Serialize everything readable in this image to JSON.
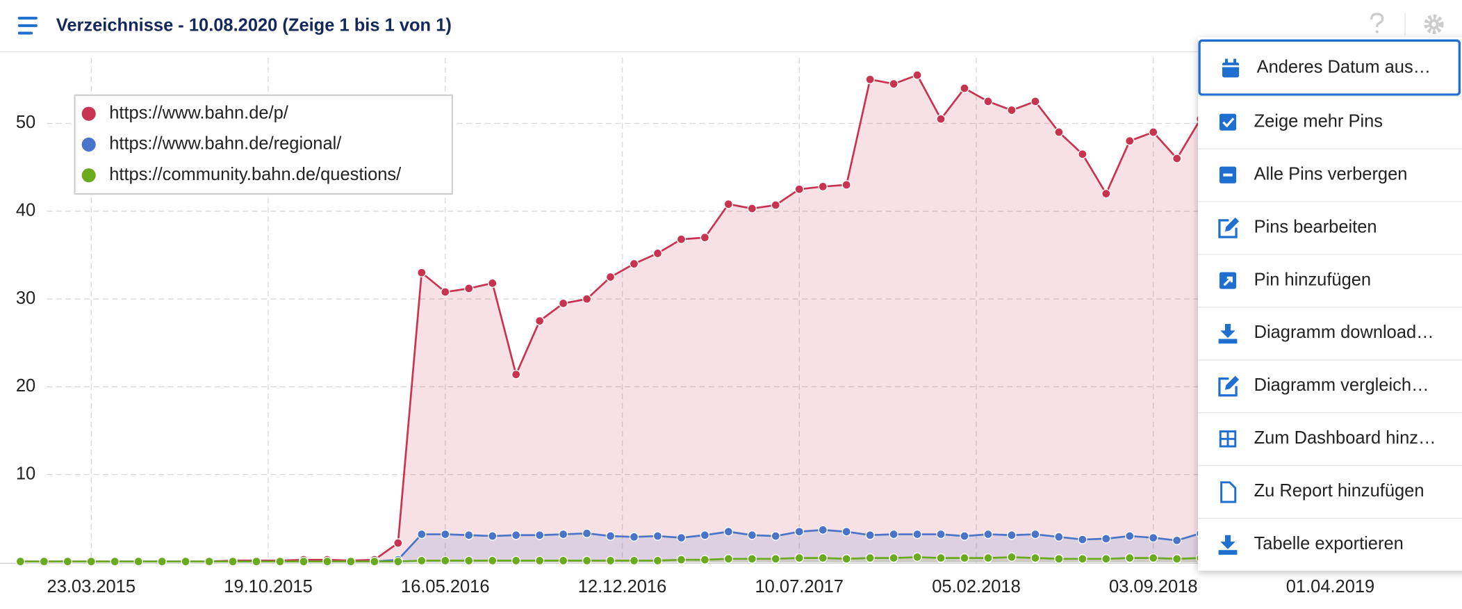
{
  "header": {
    "title": "Verzeichnisse - 10.08.2020 (Zeige 1 bis 1 von 1)"
  },
  "chart_data": {
    "type": "line",
    "x": [
      "29.12.2014",
      "26.01.2015",
      "23.02.2015",
      "23.03.2015",
      "20.04.2015",
      "18.05.2015",
      "15.06.2015",
      "13.07.2015",
      "10.08.2015",
      "07.09.2015",
      "05.10.2015",
      "02.11.2015",
      "30.11.2015",
      "28.12.2015",
      "25.01.2016",
      "22.02.2016",
      "21.03.2016",
      "18.04.2016",
      "16.05.2016",
      "13.06.2016",
      "11.07.2016",
      "08.08.2016",
      "05.09.2016",
      "03.10.2016",
      "31.10.2016",
      "28.11.2016",
      "26.12.2016",
      "23.01.2017",
      "20.02.2017",
      "20.03.2017",
      "17.04.2017",
      "15.05.2017",
      "12.06.2017",
      "10.07.2017",
      "07.08.2017",
      "04.09.2017",
      "02.10.2017",
      "30.10.2017",
      "27.11.2017",
      "25.12.2017",
      "22.01.2018",
      "19.02.2018",
      "19.03.2018",
      "16.04.2018",
      "14.05.2018",
      "11.06.2018",
      "09.07.2018",
      "06.08.2018",
      "03.09.2018",
      "01.10.2018",
      "29.10.2018"
    ],
    "series": [
      {
        "name": "https://www.bahn.de/p/",
        "color": "#c8334f",
        "values": [
          0.1,
          0.1,
          0.1,
          0.1,
          0.1,
          0.1,
          0.1,
          0.1,
          0.1,
          0.2,
          0.2,
          0.2,
          0.3,
          0.3,
          0.2,
          0.3,
          2.2,
          33,
          30.8,
          31.2,
          31.8,
          21.4,
          27.5,
          29.5,
          30,
          32.5,
          34,
          35.2,
          36.8,
          37,
          40.8,
          40.3,
          40.7,
          42.5,
          42.8,
          43,
          55,
          54.5,
          55.5,
          50.5,
          54,
          52.5,
          51.5,
          52.5,
          49,
          46.5,
          42,
          48,
          49,
          46,
          50.5
        ]
      },
      {
        "name": "https://www.bahn.de/regional/",
        "color": "#4a74c9",
        "values": [
          0.1,
          0.1,
          0.1,
          0.1,
          0.1,
          0.1,
          0.1,
          0.1,
          0.1,
          0.1,
          0.1,
          0.1,
          0.1,
          0.1,
          0.1,
          0.1,
          0.3,
          3.2,
          3.2,
          3.1,
          3.0,
          3.1,
          3.1,
          3.2,
          3.3,
          3.0,
          2.9,
          3.0,
          2.8,
          3.1,
          3.5,
          3.1,
          3.0,
          3.5,
          3.7,
          3.5,
          3.1,
          3.2,
          3.2,
          3.2,
          3.0,
          3.2,
          3.1,
          3.2,
          2.9,
          2.6,
          2.7,
          3.0,
          2.8,
          2.5,
          3.3
        ]
      },
      {
        "name": "https://community.bahn.de/questions/",
        "color": "#6aaa1e",
        "values": [
          0.1,
          0.1,
          0.1,
          0.1,
          0.1,
          0.1,
          0.1,
          0.1,
          0.1,
          0.1,
          0.1,
          0.1,
          0.1,
          0.1,
          0.1,
          0.1,
          0.1,
          0.2,
          0.2,
          0.2,
          0.2,
          0.2,
          0.2,
          0.2,
          0.2,
          0.2,
          0.2,
          0.2,
          0.3,
          0.3,
          0.4,
          0.4,
          0.4,
          0.5,
          0.5,
          0.4,
          0.5,
          0.5,
          0.6,
          0.5,
          0.5,
          0.5,
          0.6,
          0.5,
          0.4,
          0.4,
          0.4,
          0.5,
          0.5,
          0.4,
          0.5
        ]
      }
    ],
    "xlim": [
      "05.12.2014",
      "04.09.2019"
    ],
    "xticks": [
      "23.03.2015",
      "19.10.2015",
      "16.05.2016",
      "12.12.2016",
      "10.07.2017",
      "05.02.2018",
      "03.09.2018",
      "01.04.2019"
    ],
    "ylim": [
      0,
      58
    ],
    "yticks": [
      10,
      20,
      30,
      40,
      50
    ],
    "grid": true,
    "legend": "top-left"
  },
  "menu": {
    "items": [
      "Anderes Datum aus…",
      "Zeige mehr Pins",
      "Alle Pins verbergen",
      "Pins bearbeiten",
      "Pin hinzufügen",
      "Diagramm download…",
      "Diagramm vergleich…",
      "Zum Dashboard hinz…",
      "Zu Report hinzufügen",
      "Tabelle exportieren"
    ]
  }
}
